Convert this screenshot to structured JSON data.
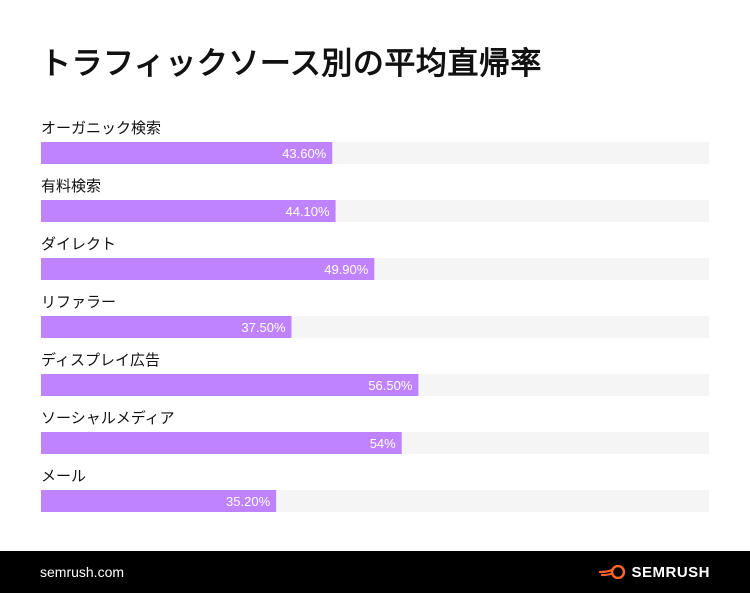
{
  "title": "トラフィックソース別の平均直帰率",
  "chart_data": {
    "type": "bar",
    "orientation": "horizontal",
    "categories": [
      "オーガニック検索",
      "有料検索",
      "ダイレクト",
      "リファラー",
      "ディスプレイ広告",
      "ソーシャルメディア",
      "メール"
    ],
    "values": [
      43.6,
      44.1,
      49.9,
      37.5,
      56.5,
      54,
      35.2
    ],
    "value_labels": [
      "43.60%",
      "44.10%",
      "49.90%",
      "37.50%",
      "56.50%",
      "54%",
      "35.20%"
    ],
    "xlim": [
      0,
      100
    ],
    "unit": "%",
    "grid": false,
    "legend": "none",
    "bar_color": "#C083FF",
    "track_color": "#F5F5F5"
  },
  "footer": {
    "url": "semrush.com",
    "brand": "SEMRUSH",
    "logo_icon": "semrush-fire-icon",
    "accent": "#FF642D"
  }
}
